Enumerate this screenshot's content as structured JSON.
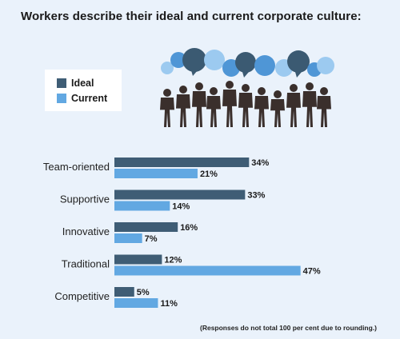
{
  "title": "Workers describe their ideal and current corporate culture:",
  "note": "(Responses do not total 100 per cent due to rounding.)",
  "colors": {
    "ideal": "#3f5d75",
    "current": "#62a8e2",
    "bubble_light": "#9ccaf0",
    "bubble_mid": "#4f96d6",
    "bubble_dark": "#3b5a72",
    "silhouette": "#3a2f2c",
    "background": "#eaf2fb"
  },
  "chart_data": {
    "type": "bar",
    "orientation": "horizontal",
    "categories": [
      "Team-oriented",
      "Supportive",
      "Innovative",
      "Traditional",
      "Competitive"
    ],
    "series": [
      {
        "name": "Ideal",
        "values": [
          34,
          33,
          16,
          12,
          5
        ]
      },
      {
        "name": "Current",
        "values": [
          21,
          14,
          7,
          47,
          11
        ]
      }
    ],
    "value_suffix": "%",
    "xlim": [
      0,
      50
    ],
    "grid": false,
    "legend_placement": "top-left"
  },
  "illustration": {
    "icon": "business-crowd-speech-bubbles-icon"
  }
}
